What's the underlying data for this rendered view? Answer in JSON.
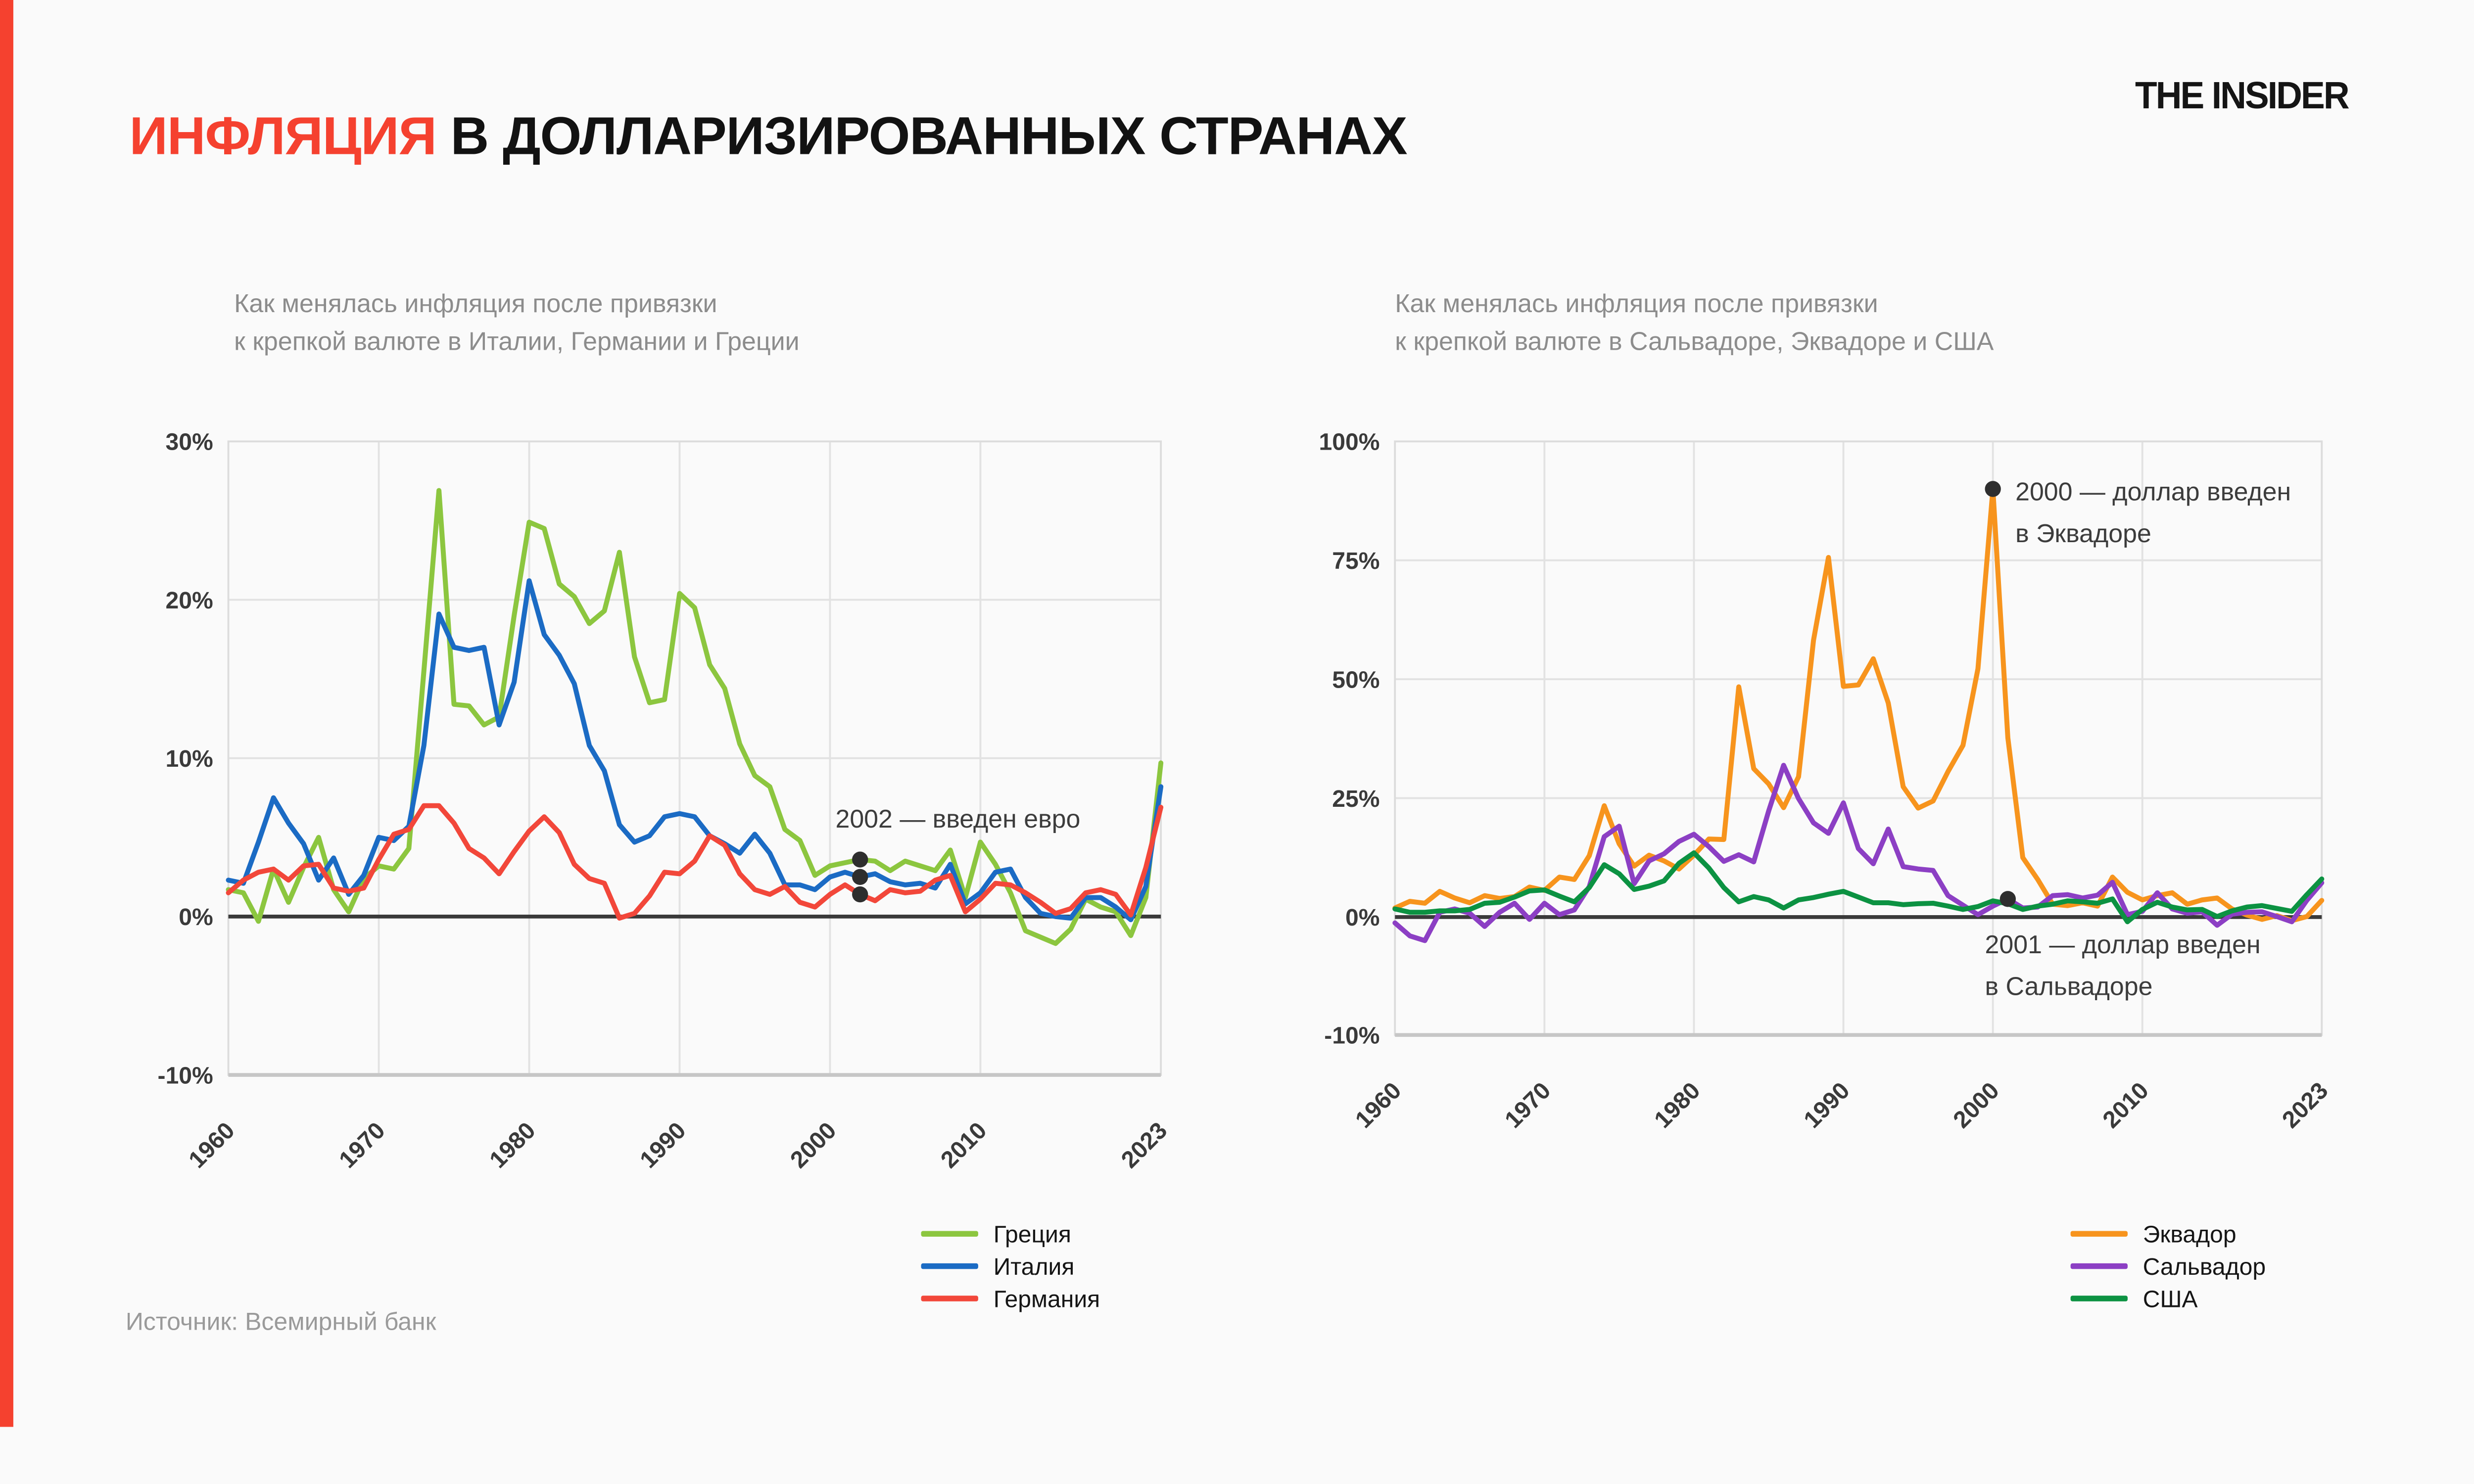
{
  "accent_color": "#F5412F",
  "header": {
    "title_highlight": "ИНФЛЯЦИЯ",
    "title_rest": " В ДОЛЛАРИЗИРОВАННЫХ СТРАНАХ",
    "logo": "THE INSIDER"
  },
  "source": "Источник: Всемирный банк",
  "text_colors": {
    "axis": "#3A3A3A",
    "annotation": "#3C3C3C",
    "subtitle": "#8C8C8C"
  },
  "chart_data": [
    {
      "type": "line",
      "title_lines": [
        "Как менялась инфляция после привязки",
        "к крепкой валюте в Италии, Германии и Греции"
      ],
      "x_start": 1960,
      "x_end": 2022,
      "x_ticks": [
        1960,
        1970,
        1980,
        1990,
        2000,
        2010,
        2023
      ],
      "y_ticks": [
        "30%",
        "20%",
        "10%",
        "0%",
        "-10%"
      ],
      "ylim": [
        -10,
        30
      ],
      "grid": true,
      "legend_position": "bottom-right",
      "series": [
        {
          "name": "Греция",
          "color": "#8CC63F",
          "values": [
            1.7,
            1.5,
            -0.3,
            3.0,
            0.9,
            3.1,
            5.0,
            1.7,
            0.3,
            2.4,
            3.2,
            3.0,
            4.3,
            15.5,
            26.9,
            13.4,
            13.3,
            12.1,
            12.6,
            19.0,
            24.9,
            24.5,
            21.0,
            20.2,
            18.5,
            19.3,
            23.0,
            16.4,
            13.5,
            13.7,
            20.4,
            19.5,
            15.9,
            14.4,
            10.9,
            8.9,
            8.2,
            5.5,
            4.8,
            2.6,
            3.2,
            3.4,
            3.6,
            3.5,
            2.9,
            3.5,
            3.2,
            2.9,
            4.2,
            1.2,
            4.7,
            3.3,
            1.5,
            -0.9,
            -1.3,
            -1.7,
            -0.8,
            1.1,
            0.6,
            0.3,
            -1.2,
            1.2,
            9.7
          ]
        },
        {
          "name": "Италия",
          "color": "#1B6BC4",
          "values": [
            2.3,
            2.1,
            4.7,
            7.5,
            5.9,
            4.6,
            2.3,
            3.7,
            1.4,
            2.6,
            5.0,
            4.8,
            5.7,
            10.8,
            19.1,
            17.0,
            16.8,
            17.0,
            12.1,
            14.8,
            21.2,
            17.8,
            16.5,
            14.7,
            10.8,
            9.2,
            5.8,
            4.7,
            5.1,
            6.3,
            6.5,
            6.3,
            5.1,
            4.6,
            4.0,
            5.2,
            4.0,
            2.0,
            2.0,
            1.7,
            2.5,
            2.8,
            2.5,
            2.7,
            2.2,
            2.0,
            2.1,
            1.8,
            3.3,
            0.8,
            1.5,
            2.8,
            3.0,
            1.2,
            0.2,
            0.0,
            -0.1,
            1.2,
            1.2,
            0.6,
            -0.2,
            1.9,
            8.2
          ]
        },
        {
          "name": "Германия",
          "color": "#F2473A",
          "values": [
            1.5,
            2.3,
            2.8,
            3.0,
            2.3,
            3.2,
            3.3,
            1.8,
            1.6,
            1.8,
            3.6,
            5.2,
            5.5,
            7.0,
            7.0,
            5.9,
            4.3,
            3.7,
            2.7,
            4.1,
            5.4,
            6.3,
            5.3,
            3.3,
            2.4,
            2.1,
            -0.1,
            0.2,
            1.3,
            2.8,
            2.7,
            3.5,
            5.1,
            4.5,
            2.7,
            1.7,
            1.4,
            1.9,
            0.9,
            0.6,
            1.4,
            2.0,
            1.4,
            1.0,
            1.7,
            1.5,
            1.6,
            2.3,
            2.6,
            0.3,
            1.1,
            2.1,
            2.0,
            1.5,
            0.9,
            0.2,
            0.5,
            1.5,
            1.7,
            1.4,
            0.1,
            3.1,
            6.9
          ]
        }
      ],
      "annotations": [
        {
          "lines": [
            "2002 — введен евро"
          ],
          "year": 2002,
          "dot_values": [
            3.6,
            2.5,
            1.4
          ]
        }
      ]
    },
    {
      "type": "line",
      "title_lines": [
        "Как менялась инфляция после привязки",
        "к крепкой валюте в Сальвадоре, Эквадоре и США"
      ],
      "x_start": 1960,
      "x_end": 2022,
      "x_ticks": [
        1960,
        1970,
        1980,
        1990,
        2000,
        2010,
        2023
      ],
      "y_ticks": [
        "100%",
        "75%",
        "50%",
        "25%",
        "0%",
        "-10%"
      ],
      "ylim": [
        -10,
        100
      ],
      "grid": true,
      "legend_position": "bottom-right",
      "series": [
        {
          "name": "Эквадор",
          "color": "#F7941D",
          "values": [
            1.9,
            3.3,
            2.9,
            5.4,
            4.0,
            3.0,
            4.5,
            3.9,
            4.3,
            6.3,
            5.6,
            8.4,
            7.9,
            12.9,
            23.4,
            15.4,
            10.7,
            13.0,
            11.8,
            10.1,
            13.0,
            16.4,
            16.3,
            48.4,
            31.2,
            28.0,
            23.0,
            29.5,
            58.2,
            75.6,
            48.5,
            48.8,
            54.3,
            45.0,
            27.4,
            22.9,
            24.4,
            30.6,
            36.1,
            52.2,
            90.0,
            37.7,
            12.5,
            7.9,
            2.7,
            2.4,
            3.0,
            2.3,
            8.4,
            5.2,
            3.6,
            4.5,
            5.1,
            2.7,
            3.6,
            4.0,
            1.7,
            0.4,
            -0.2,
            0.3,
            -0.3,
            0.1,
            3.5
          ]
        },
        {
          "name": "Сальвадор",
          "color": "#8C3FC4",
          "values": [
            -0.5,
            -1.6,
            -2.0,
            1.0,
            1.7,
            0.8,
            -0.8,
            1.0,
            2.9,
            -0.2,
            2.9,
            0.5,
            1.5,
            6.4,
            16.9,
            19.1,
            7.0,
            11.8,
            13.3,
            15.9,
            17.4,
            14.8,
            11.7,
            13.1,
            11.6,
            22.3,
            31.9,
            24.9,
            19.8,
            17.6,
            24.0,
            14.4,
            11.2,
            18.5,
            10.6,
            10.1,
            9.8,
            4.5,
            2.5,
            0.5,
            2.3,
            3.8,
            1.9,
            2.1,
            4.5,
            4.7,
            4.0,
            4.6,
            7.3,
            0.5,
            1.2,
            5.1,
            1.7,
            0.8,
            1.1,
            -0.7,
            0.6,
            1.0,
            1.1,
            0.1,
            -0.4,
            3.5,
            7.2
          ]
        },
        {
          "name": "США",
          "color": "#0C9242",
          "values": [
            1.7,
            1.0,
            1.0,
            1.3,
            1.3,
            1.6,
            2.9,
            3.1,
            4.2,
            5.5,
            5.7,
            4.4,
            3.2,
            6.2,
            11.0,
            9.1,
            5.8,
            6.5,
            7.6,
            11.3,
            13.5,
            10.3,
            6.2,
            3.2,
            4.3,
            3.6,
            1.9,
            3.6,
            4.1,
            4.8,
            5.4,
            4.2,
            3.0,
            3.0,
            2.6,
            2.8,
            2.9,
            2.3,
            1.6,
            2.2,
            3.4,
            2.8,
            1.6,
            2.3,
            2.7,
            3.4,
            3.2,
            2.9,
            3.8,
            -0.4,
            1.6,
            3.1,
            2.1,
            1.5,
            1.6,
            0.1,
            1.3,
            2.1,
            2.4,
            1.8,
            1.2,
            4.7,
            8.0
          ]
        }
      ],
      "annotations": [
        {
          "lines": [
            "2000 — доллар введен",
            "в Эквадоре"
          ],
          "year": 2000,
          "dot_values": [
            90
          ]
        },
        {
          "lines": [
            "2001 — доллар введен",
            "в Сальвадоре"
          ],
          "year": 2001,
          "dot_values": [
            3.8
          ]
        }
      ]
    }
  ]
}
